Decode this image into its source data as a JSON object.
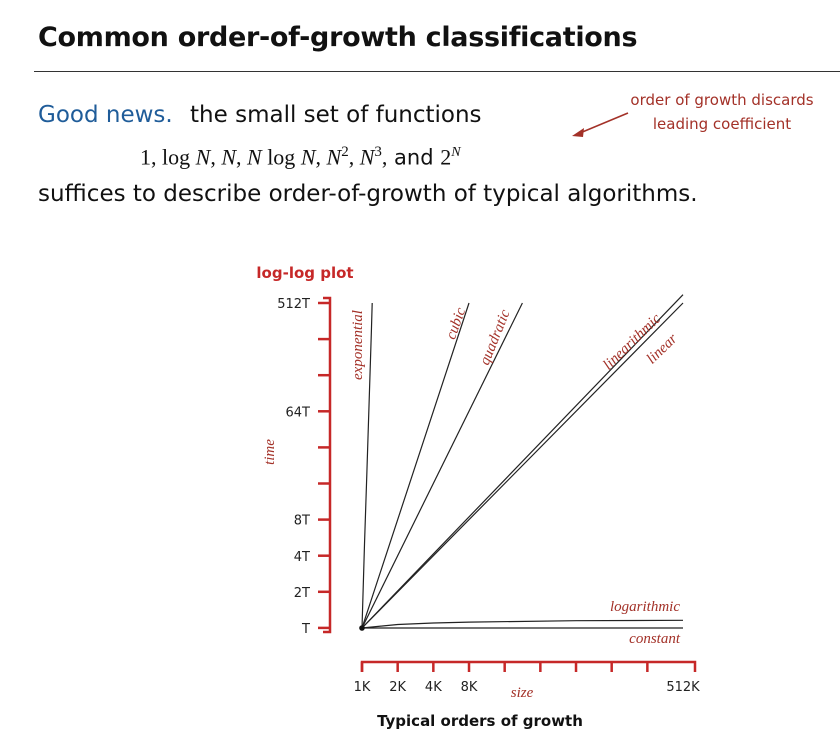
{
  "slide": {
    "title": "Common order-of-growth classifications",
    "lead": "Good news.",
    "line1_rest": "the small set of functions",
    "formula": {
      "part1": "1,  log ",
      "part1_N": "N",
      "part1_sep": ",  ",
      "N": "N",
      "sep2": ",  ",
      "NlogN_a": "N",
      "NlogN_b": " log ",
      "NlogN_c": "N",
      "sep3": ",  ",
      "N2_base": "N",
      "N2_exp": "2",
      "sep4": ",  ",
      "N3_base": "N",
      "N3_exp": "3",
      "sep5": ",",
      "and": " and ",
      "twoN_base": "2",
      "twoN_exp": "N"
    },
    "line3": "suffices to describe order-of-growth of typical algorithms.",
    "annotation_line1": "order of growth discards",
    "annotation_line2": "leading coefficient"
  },
  "chart_data": {
    "type": "line",
    "title": "log-log plot",
    "caption": "Typical orders of growth",
    "xlabel": "size",
    "ylabel": "time",
    "xscale": "log",
    "yscale": "log",
    "x_ticks": [
      "1K",
      "2K",
      "4K",
      "8K",
      "512K"
    ],
    "y_ticks": [
      "T",
      "2T",
      "4T",
      "8T",
      "64T",
      "512T"
    ],
    "xlim": [
      1,
      512
    ],
    "ylim": [
      1,
      512
    ],
    "series": [
      {
        "name": "constant",
        "x": [
          1,
          512
        ],
        "y": [
          1,
          1
        ]
      },
      {
        "name": "logarithmic",
        "x": [
          1,
          2,
          4,
          8,
          64,
          512
        ],
        "y": [
          1,
          1.07,
          1.1,
          1.12,
          1.15,
          1.16
        ]
      },
      {
        "name": "linear",
        "x": [
          1,
          512
        ],
        "y": [
          1,
          512
        ]
      },
      {
        "name": "linearithmic",
        "x": [
          1,
          512
        ],
        "y": [
          1,
          600
        ]
      },
      {
        "name": "quadratic",
        "x": [
          1,
          22.6
        ],
        "y": [
          1,
          512
        ]
      },
      {
        "name": "cubic",
        "x": [
          1,
          8
        ],
        "y": [
          1,
          512
        ]
      },
      {
        "name": "exponential",
        "x": [
          1,
          1.05,
          1.1,
          1.15,
          1.2,
          1.22
        ],
        "y": [
          1,
          5,
          20,
          80,
          300,
          512
        ]
      }
    ],
    "colors": {
      "axis": "#c62828",
      "curve": "#222222",
      "label": "#a33128"
    }
  }
}
